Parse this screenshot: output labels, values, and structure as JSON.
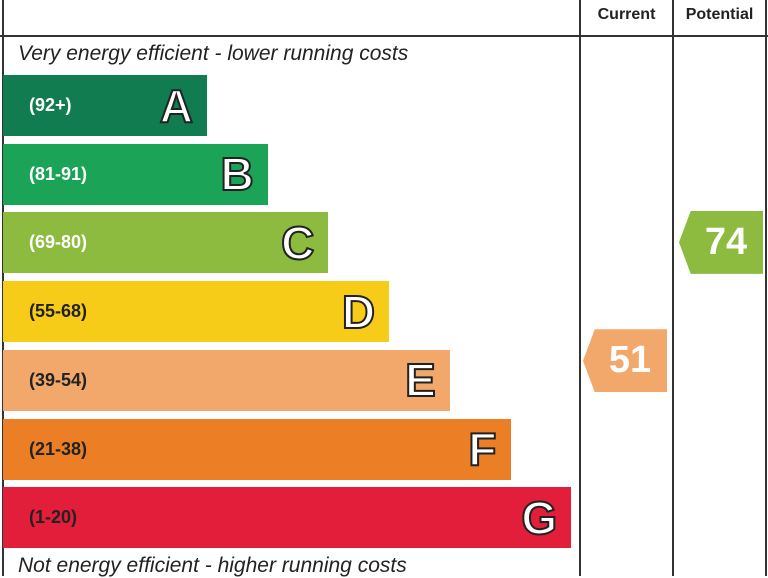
{
  "chart_data": {
    "type": "bar",
    "columns": [
      "Current",
      "Potential"
    ],
    "top_note": "Very energy efficient - lower running costs",
    "bottom_note": "Not energy efficient - higher running costs",
    "bands": [
      {
        "letter": "A",
        "range": "(92+)",
        "min": 92,
        "max": 100,
        "color": "#107c4f"
      },
      {
        "letter": "B",
        "range": "(81-91)",
        "min": 81,
        "max": 91,
        "color": "#1ba358"
      },
      {
        "letter": "C",
        "range": "(69-80)",
        "min": 69,
        "max": 80,
        "color": "#8cbb3f"
      },
      {
        "letter": "D",
        "range": "(55-68)",
        "min": 55,
        "max": 68,
        "color": "#f7cc19"
      },
      {
        "letter": "E",
        "range": "(39-54)",
        "min": 39,
        "max": 54,
        "color": "#f2a86b"
      },
      {
        "letter": "F",
        "range": "(21-38)",
        "min": 21,
        "max": 38,
        "color": "#ec7f25"
      },
      {
        "letter": "G",
        "range": "(1-20)",
        "min": 1,
        "max": 20,
        "color": "#e31e3b"
      }
    ],
    "current": {
      "value": "51",
      "band": "E",
      "color": "#f2a86b"
    },
    "potential": {
      "value": "74",
      "band": "C",
      "color": "#8cbb3f"
    }
  }
}
